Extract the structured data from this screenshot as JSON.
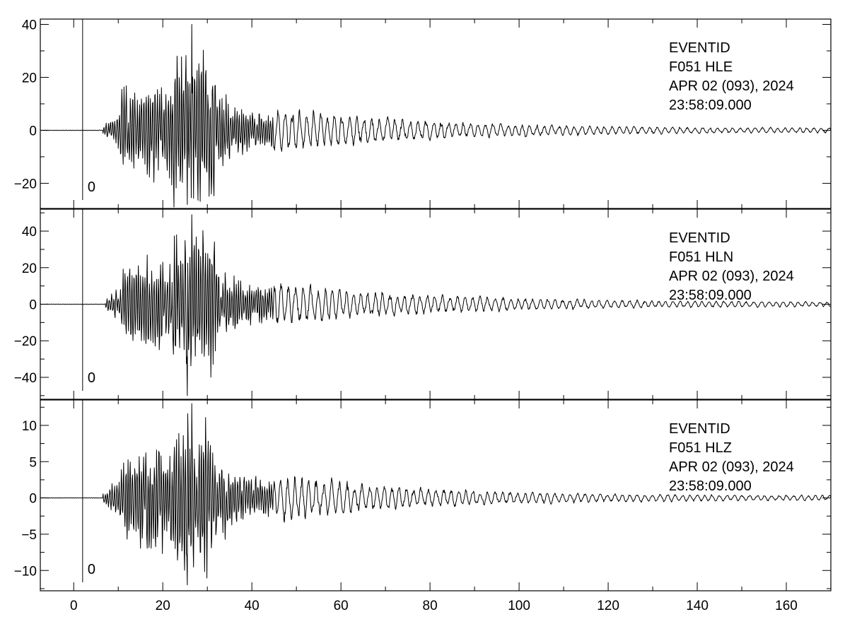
{
  "chart_data": {
    "type": "line",
    "xlim": [
      -7.5,
      170
    ],
    "x_ticks": [
      0,
      20,
      40,
      60,
      80,
      100,
      120,
      140,
      160
    ],
    "x_tick_labels": [
      "0",
      "20",
      "40",
      "60",
      "80",
      "100",
      "120",
      "140",
      "160"
    ],
    "grid": false,
    "pick_marker": {
      "x": 2,
      "label": "0"
    },
    "panels": [
      {
        "channel": "HLE",
        "ylim": [
          -29.5,
          42
        ],
        "y_ticks": [
          -20,
          0,
          20,
          40
        ],
        "y_tick_labels": [
          "−20",
          "0",
          "20",
          "40"
        ],
        "info": [
          "EVENTID",
          "F051   HLE",
          "APR 02 (093), 2024",
          "23:58:09.000"
        ],
        "max_amplitude": 40,
        "min_amplitude": -28,
        "onset_time": 6.5
      },
      {
        "channel": "HLN",
        "ylim": [
          -52,
          52
        ],
        "y_ticks": [
          -40,
          -20,
          0,
          20,
          40
        ],
        "y_tick_labels": [
          "−40",
          "−20",
          "0",
          "20",
          "40"
        ],
        "info": [
          "EVENTID",
          "F051   HLN",
          "APR 02 (093), 2024",
          "23:58:09.000"
        ],
        "max_amplitude": 49,
        "min_amplitude": -50,
        "onset_time": 7
      },
      {
        "channel": "HLZ",
        "ylim": [
          -12.8,
          13.5
        ],
        "y_ticks": [
          -10,
          -5,
          0,
          5,
          10
        ],
        "y_tick_labels": [
          "−10",
          "−5",
          "0",
          "5",
          "10"
        ],
        "info": [
          "EVENTID",
          "F051   HLZ",
          "APR 02 (093), 2024",
          "23:58:09.000"
        ],
        "max_amplitude": 13,
        "min_amplitude": -12,
        "onset_time": 6.5
      }
    ]
  }
}
